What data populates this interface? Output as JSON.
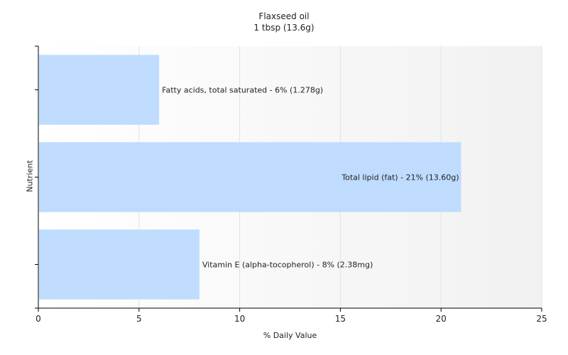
{
  "chart_data": {
    "type": "bar",
    "orientation": "horizontal",
    "title": "Flaxseed oil",
    "subtitle": "1 tbsp (13.6g)",
    "xlabel": "% Daily Value",
    "ylabel": "Nutrient",
    "xlim": [
      0,
      25
    ],
    "xticks": [
      "0",
      "5",
      "10",
      "15",
      "20",
      "25"
    ],
    "grid": "vertical",
    "bar_color": "#bfdcff",
    "categories": [
      "Fatty acids, total saturated",
      "Total lipid (fat)",
      "Vitamin E (alpha-tocopherol)"
    ],
    "values": [
      6,
      21,
      8
    ],
    "labels": [
      "Fatty acids, total saturated - 6% (1.278g)",
      "Total lipid (fat) - 21% (13.60g)",
      "Vitamin E (alpha-tocopherol) - 8% (2.38mg)"
    ]
  }
}
